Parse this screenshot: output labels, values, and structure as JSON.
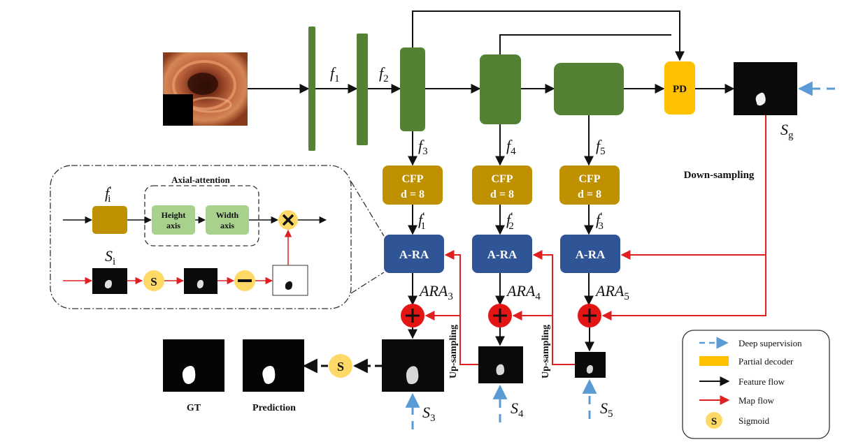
{
  "features": {
    "f1": {
      "base": "f",
      "sub": "1"
    },
    "f2": {
      "base": "f",
      "sub": "2"
    },
    "f3": {
      "base": "f",
      "sub": "3"
    },
    "f4": {
      "base": "f",
      "sub": "4"
    },
    "f5": {
      "base": "f",
      "sub": "5"
    },
    "f1p": {
      "base": "f",
      "prime": "′",
      "sub": "1"
    },
    "f2p": {
      "base": "f",
      "prime": "′",
      "sub": "2"
    },
    "f3p": {
      "base": "f",
      "prime": "′",
      "sub": "3"
    },
    "fip": {
      "base": "f",
      "prime": "′",
      "sub": "i"
    }
  },
  "blocks": {
    "pd": "PD",
    "cfp_line1": "CFP",
    "cfp_line2": "d = 8",
    "ara": "A-RA"
  },
  "outputs": {
    "ara3": {
      "base": "ARA",
      "sub": "3"
    },
    "ara4": {
      "base": "ARA",
      "sub": "4"
    },
    "ara5": {
      "base": "ARA",
      "sub": "5"
    },
    "sg": {
      "base": "S",
      "sub": "g"
    },
    "s3": {
      "base": "S",
      "sub": "3"
    },
    "s4": {
      "base": "S",
      "sub": "4"
    },
    "s5": {
      "base": "S",
      "sub": "5"
    },
    "si": {
      "base": "S",
      "sub": "i"
    }
  },
  "labels": {
    "down_sampling": "Down-sampling",
    "up_sampling": "Up-sampling",
    "gt": "GT",
    "prediction": "Prediction",
    "sigmoid_symbol": "S"
  },
  "axial_attention": {
    "title": "Axial-attention",
    "height_line1": "Height",
    "height_line2": "axis",
    "width_line1": "Width",
    "width_line2": "axis"
  },
  "legend": {
    "items": [
      {
        "icon": "dashed-arrow",
        "label": "Deep supervision"
      },
      {
        "icon": "yellow-rect",
        "label": "Partial decoder"
      },
      {
        "icon": "black-arrow",
        "label": "Feature flow"
      },
      {
        "icon": "red-arrow",
        "label": "Map flow"
      },
      {
        "icon": "sigmoid-circle",
        "label": "Sigmoid"
      }
    ]
  },
  "colors": {
    "encoder_green": "#548235",
    "cfp_gold": "#BF9000",
    "ara_blue": "#2F5597",
    "pd_yellow": "#FFC000",
    "map_red": "#E02020",
    "plus_red": "#E31515",
    "sigmoid_yellow": "#FFD966",
    "axis_green": "#A9D18E",
    "deep_sup_blue": "#5B9BD5"
  }
}
